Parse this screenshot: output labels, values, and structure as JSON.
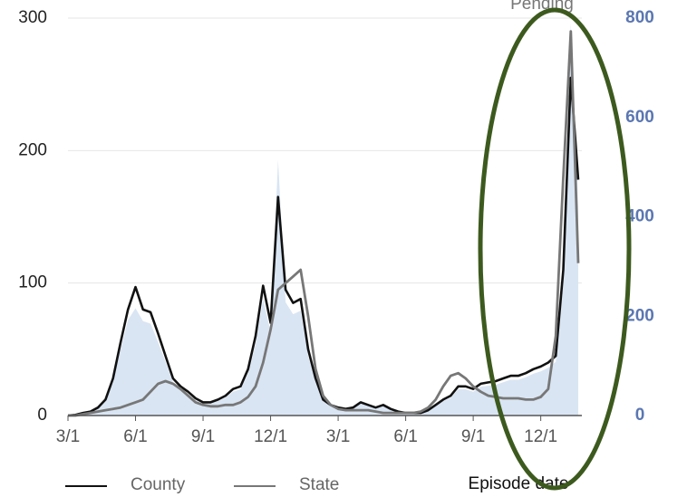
{
  "chart_data": {
    "type": "line",
    "annotations": [
      "Pending"
    ],
    "x_axis_label": "Episode date",
    "categories": [
      "3/1",
      null,
      null,
      null,
      null,
      null,
      null,
      null,
      null,
      "6/1",
      null,
      null,
      null,
      null,
      null,
      null,
      null,
      null,
      "9/1",
      null,
      null,
      null,
      null,
      null,
      null,
      null,
      null,
      "12/1",
      null,
      null,
      null,
      null,
      null,
      null,
      null,
      null,
      "3/1",
      null,
      null,
      null,
      null,
      null,
      null,
      null,
      null,
      "6/1",
      null,
      null,
      null,
      null,
      null,
      null,
      null,
      null,
      "9/1",
      null,
      null,
      null,
      null,
      null,
      null,
      null,
      null,
      "12/1",
      null,
      null,
      null,
      null,
      null
    ],
    "series": [
      {
        "kind": "area",
        "axis": "y2",
        "color": "#d9e5f3",
        "values": [
          0,
          1,
          5,
          7,
          14,
          29,
          67,
          132,
          192,
          216,
          190,
          185,
          148,
          108,
          67,
          53,
          43,
          31,
          24,
          24,
          29,
          36,
          48,
          53,
          84,
          144,
          235,
          168,
          515,
          228,
          204,
          211,
          120,
          67,
          29,
          19,
          14,
          12,
          14,
          24,
          19,
          14,
          19,
          12,
          7,
          5,
          5,
          5,
          10,
          19,
          29,
          36,
          53,
          53,
          48,
          58,
          60,
          62,
          67,
          72,
          72,
          77,
          84,
          89,
          96,
          108,
          264,
          790,
          420
        ]
      },
      {
        "name": "County",
        "color": "#111111",
        "values": [
          0,
          0.5,
          2,
          3,
          6,
          12,
          28,
          55,
          80,
          97,
          80,
          78,
          62,
          45,
          28,
          22,
          18,
          13,
          10,
          10,
          12,
          15,
          20,
          22,
          35,
          60,
          98,
          70,
          165,
          95,
          85,
          88,
          50,
          28,
          12,
          8,
          6,
          5,
          6,
          10,
          8,
          6,
          8,
          5,
          3,
          2,
          2,
          2,
          4,
          8,
          12,
          15,
          22,
          22,
          20,
          24,
          25,
          26,
          28,
          30,
          30,
          32,
          35,
          37,
          40,
          45,
          110,
          255,
          178
        ]
      },
      {
        "name": "State",
        "color": "#777777",
        "values": [
          0,
          0,
          1,
          2,
          3,
          4,
          5,
          6,
          8,
          10,
          12,
          18,
          24,
          26,
          24,
          20,
          15,
          10,
          8,
          7,
          7,
          8,
          8,
          10,
          14,
          22,
          40,
          65,
          95,
          100,
          105,
          110,
          75,
          35,
          15,
          8,
          5,
          4,
          4,
          4,
          4,
          3,
          2,
          2,
          2,
          2,
          2,
          3,
          6,
          12,
          22,
          30,
          32,
          28,
          22,
          18,
          15,
          14,
          13,
          13,
          13,
          12,
          12,
          14,
          20,
          60,
          180,
          290,
          115
        ]
      }
    ],
    "ylim": [
      0,
      300
    ],
    "yticks": [
      0,
      100,
      200,
      300
    ],
    "y2lim": [
      0,
      800
    ],
    "y2ticks": [
      0,
      200,
      400,
      600,
      800
    ],
    "grid": true
  }
}
